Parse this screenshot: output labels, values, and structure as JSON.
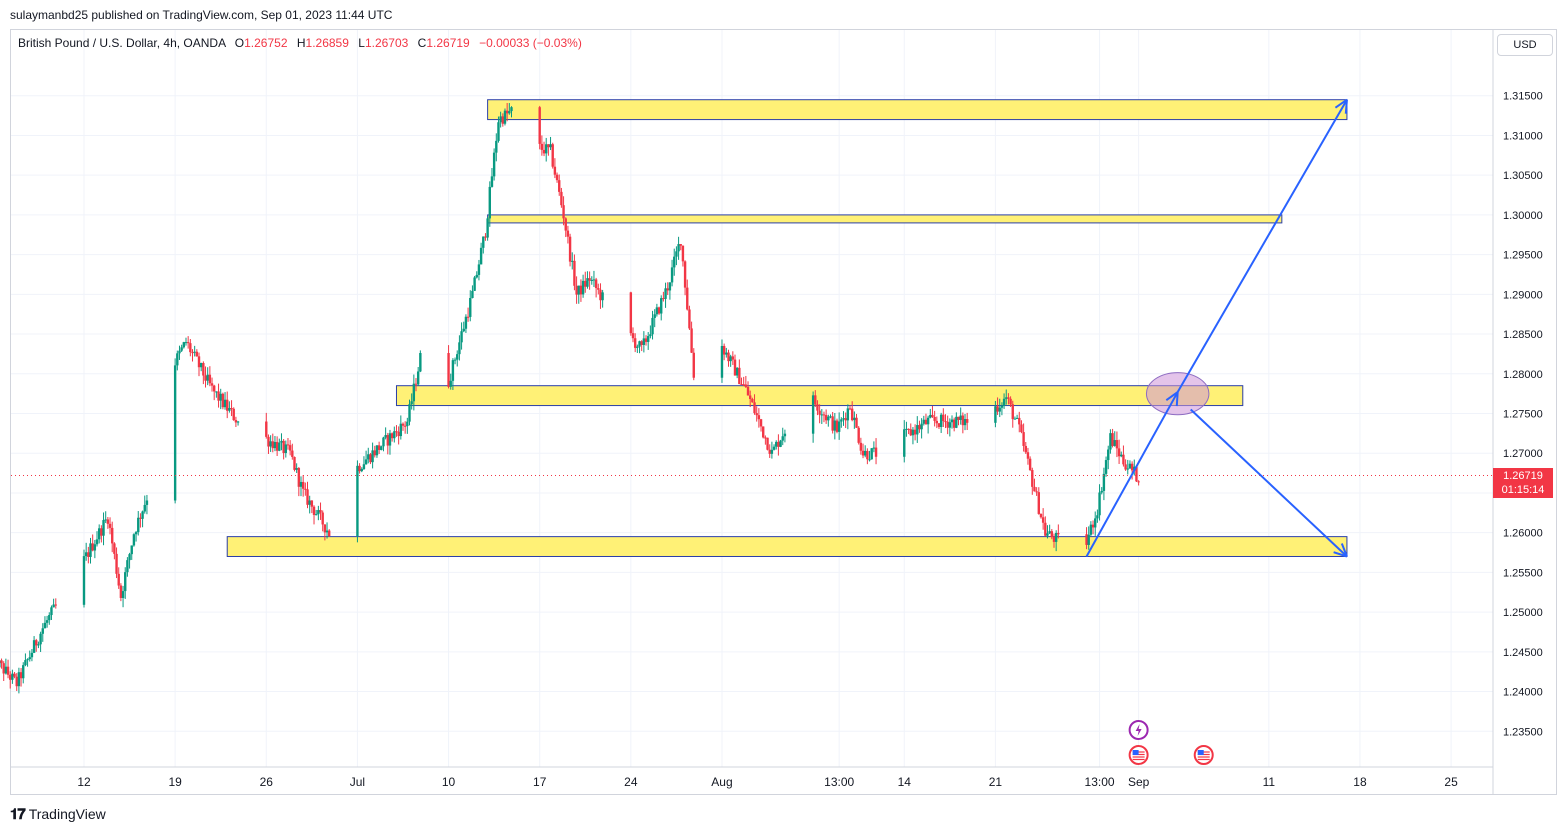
{
  "header": {
    "published": "sulaymanbd25 published on TradingView.com, Sep 01, 2023 11:44 UTC"
  },
  "legend": {
    "symbol": "British Pound / U.S. Dollar, 4h, OANDA",
    "open_label": "O",
    "open": "1.26752",
    "high_label": "H",
    "high": "1.26859",
    "low_label": "L",
    "low": "1.26703",
    "close_label": "C",
    "close": "1.26719",
    "change": "−0.00033 (−0.03%)"
  },
  "currency_button": "USD",
  "last_price": {
    "price": "1.26719",
    "countdown": "01:15:14",
    "color": "#f23645"
  },
  "footer": {
    "brand": "TradingView",
    "logo_icon": "tradingview-logo-icon"
  },
  "colors": {
    "up": "#089981",
    "down": "#f23645",
    "zone_fill": "#fff176",
    "zone_border": "#2b3fa8",
    "arrow": "#2962ff",
    "ellipse_fill": "#ce93d8"
  },
  "chart_data": {
    "type": "candlestick",
    "interval": "4h",
    "y_scale": "price",
    "ylim": [
      1.2305,
      1.3195
    ],
    "y_ticks": [
      "1.31500",
      "1.31000",
      "1.30500",
      "1.30000",
      "1.29500",
      "1.29000",
      "1.28500",
      "1.28000",
      "1.27500",
      "1.27000",
      "1.26500",
      "1.26000",
      "1.25500",
      "1.25000",
      "1.24500",
      "1.24000",
      "1.23500"
    ],
    "x_ticks": [
      "12",
      "19",
      "26",
      "Jul",
      "10",
      "17",
      "24",
      "Aug",
      "13:00",
      "14",
      "21",
      "13:00",
      "Sep",
      "11",
      "18",
      "25"
    ],
    "x_tick_dates": [
      "2023-06-12",
      "2023-06-19",
      "2023-06-26",
      "2023-07-03",
      "2023-07-10",
      "2023-07-17",
      "2023-07-24",
      "2023-07-31",
      "2023-08-09",
      "2023-08-14",
      "2023-08-21",
      "2023-08-29",
      "2023-09-01",
      "2023-09-11",
      "2023-09-18",
      "2023-09-25"
    ],
    "price_path": [
      [
        "2023-06-05",
        1.2445
      ],
      [
        "2023-06-07",
        1.241
      ],
      [
        "2023-06-09",
        1.248
      ],
      [
        "2023-06-12",
        1.256
      ],
      [
        "2023-06-14",
        1.262
      ],
      [
        "2023-06-15",
        1.252
      ],
      [
        "2023-06-16",
        1.26
      ],
      [
        "2023-06-18",
        1.269
      ],
      [
        "2023-06-19",
        1.281
      ],
      [
        "2023-06-20",
        1.284
      ],
      [
        "2023-06-22",
        1.278
      ],
      [
        "2023-06-24",
        1.274
      ],
      [
        "2023-06-26",
        1.272
      ],
      [
        "2023-06-28",
        1.27
      ],
      [
        "2023-06-29",
        1.265
      ],
      [
        "2023-07-01",
        1.26
      ],
      [
        "2023-07-03",
        1.268
      ],
      [
        "2023-07-05",
        1.271
      ],
      [
        "2023-07-07",
        1.274
      ],
      [
        "2023-07-08",
        1.282
      ],
      [
        "2023-07-10",
        1.278
      ],
      [
        "2023-07-12",
        1.29
      ],
      [
        "2023-07-13",
        1.298
      ],
      [
        "2023-07-14",
        1.312
      ],
      [
        "2023-07-15",
        1.313
      ],
      [
        "2023-07-17",
        1.3085
      ],
      [
        "2023-07-18",
        1.308
      ],
      [
        "2023-07-19",
        1.3
      ],
      [
        "2023-07-20",
        1.29
      ],
      [
        "2023-07-21",
        1.292
      ],
      [
        "2023-07-23",
        1.287
      ],
      [
        "2023-07-25",
        1.283
      ],
      [
        "2023-07-27",
        1.291
      ],
      [
        "2023-07-28",
        1.297
      ],
      [
        "2023-07-29",
        1.28
      ],
      [
        "2023-07-31",
        1.284
      ],
      [
        "2023-08-02",
        1.278
      ],
      [
        "2023-08-04",
        1.27
      ],
      [
        "2023-08-05",
        1.273
      ],
      [
        "2023-08-07",
        1.277
      ],
      [
        "2023-08-09",
        1.273
      ],
      [
        "2023-08-10",
        1.276
      ],
      [
        "2023-08-11",
        1.27
      ],
      [
        "2023-08-13",
        1.27
      ],
      [
        "2023-08-14",
        1.272
      ],
      [
        "2023-08-16",
        1.274
      ],
      [
        "2023-08-18",
        1.274
      ],
      [
        "2023-08-20",
        1.274
      ],
      [
        "2023-08-22",
        1.277
      ],
      [
        "2023-08-23",
        1.273
      ],
      [
        "2023-08-25",
        1.26
      ],
      [
        "2023-08-26",
        1.259
      ],
      [
        "2023-08-28",
        1.258
      ],
      [
        "2023-08-29",
        1.263
      ],
      [
        "2023-08-30",
        1.272
      ],
      [
        "2023-08-31",
        1.269
      ],
      [
        "2023-09-01",
        1.2672
      ]
    ],
    "zones": [
      {
        "from": "2023-07-13",
        "to": "2023-09-17",
        "low": 1.312,
        "high": 1.3145
      },
      {
        "from": "2023-07-13",
        "to": "2023-09-12",
        "low": 1.299,
        "high": 1.3
      },
      {
        "from": "2023-07-06",
        "to": "2023-09-09",
        "low": 1.276,
        "high": 1.2785
      },
      {
        "from": "2023-06-23",
        "to": "2023-09-17",
        "low": 1.257,
        "high": 1.2595
      }
    ],
    "arrows": [
      {
        "from": [
          "2023-08-28",
          1.257
        ],
        "to": [
          "2023-09-04",
          1.2777
        ]
      },
      {
        "from": [
          "2023-09-04",
          1.2777
        ],
        "to": [
          "2023-09-17",
          1.3145
        ]
      },
      {
        "from": [
          "2023-09-05",
          1.2755
        ],
        "to": [
          "2023-09-17",
          1.257
        ]
      }
    ],
    "ellipse": {
      "center": [
        "2023-09-04",
        1.2775
      ],
      "rx_days": 2.4,
      "ry_price": 0.00265
    },
    "event_markers": [
      {
        "date": "2023-09-01",
        "icon": "lightning-icon",
        "color": "#9c27b0"
      },
      {
        "date": "2023-09-01",
        "icon": "us-flag-icon",
        "color": "#f23645"
      },
      {
        "date": "2023-09-06",
        "icon": "us-flag-icon",
        "color": "#f23645"
      }
    ],
    "last_price_line": 1.26719
  }
}
